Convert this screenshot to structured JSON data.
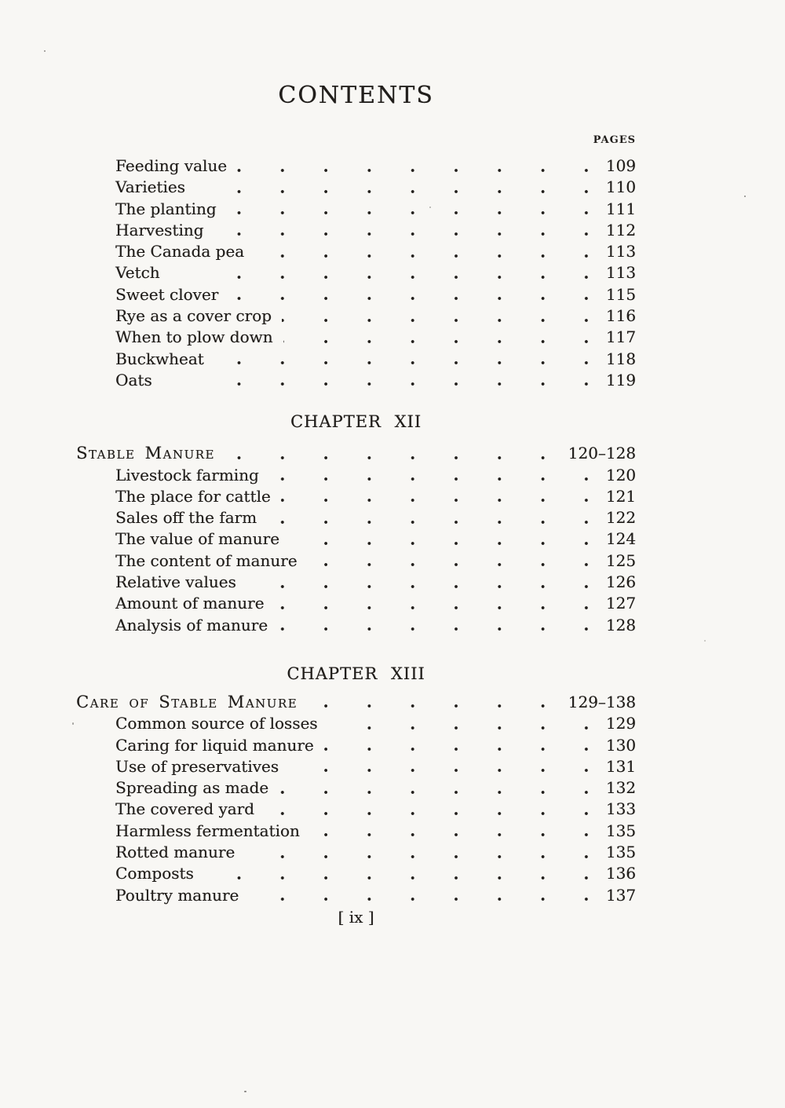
{
  "document": {
    "title": "CONTENTS",
    "column_header": "PAGES",
    "footer": "[ ix ]"
  },
  "front_section": {
    "entries": [
      {
        "label": "Feeding value",
        "page": "109"
      },
      {
        "label": "Varieties",
        "page": "110"
      },
      {
        "label": "The planting",
        "page": "111"
      },
      {
        "label": "Harvesting",
        "page": "112"
      },
      {
        "label": "The Canada pea",
        "page": "113"
      },
      {
        "label": "Vetch",
        "page": "113"
      },
      {
        "label": "Sweet clover",
        "page": "115"
      },
      {
        "label": "Rye as a cover crop",
        "page": "116"
      },
      {
        "label": "When to plow down",
        "page": "117"
      },
      {
        "label": "Buckwheat",
        "page": "118"
      },
      {
        "label": "Oats",
        "page": "119"
      }
    ]
  },
  "chapters": [
    {
      "heading": "CHAPTER XII",
      "title": "Stable Manure",
      "pages": "120–128",
      "entries": [
        {
          "label": "Livestock farming",
          "page": "120"
        },
        {
          "label": "The place for cattle",
          "page": "121"
        },
        {
          "label": "Sales off the farm",
          "page": "122"
        },
        {
          "label": "The value of manure",
          "page": "124"
        },
        {
          "label": "The content of manure",
          "page": "125"
        },
        {
          "label": "Relative values",
          "page": "126"
        },
        {
          "label": "Amount of manure",
          "page": "127"
        },
        {
          "label": "Analysis of manure",
          "page": "128"
        }
      ]
    },
    {
      "heading": "CHAPTER XIII",
      "title": "Care of Stable Manure",
      "pages": "129–138",
      "entries": [
        {
          "label": "Common source of losses",
          "page": "129"
        },
        {
          "label": "Caring for liquid manure",
          "page": "130"
        },
        {
          "label": "Use of preservatives",
          "page": "131"
        },
        {
          "label": "Spreading as made",
          "page": "132"
        },
        {
          "label": "The covered yard",
          "page": "133"
        },
        {
          "label": "Harmless fermentation",
          "page": "135"
        },
        {
          "label": "Rotted manure",
          "page": "135"
        },
        {
          "label": "Composts",
          "page": "136"
        },
        {
          "label": "Poultry manure",
          "page": "137"
        }
      ]
    }
  ],
  "colors": {
    "paper": "#f8f7f4",
    "ink": "#211e1b"
  }
}
